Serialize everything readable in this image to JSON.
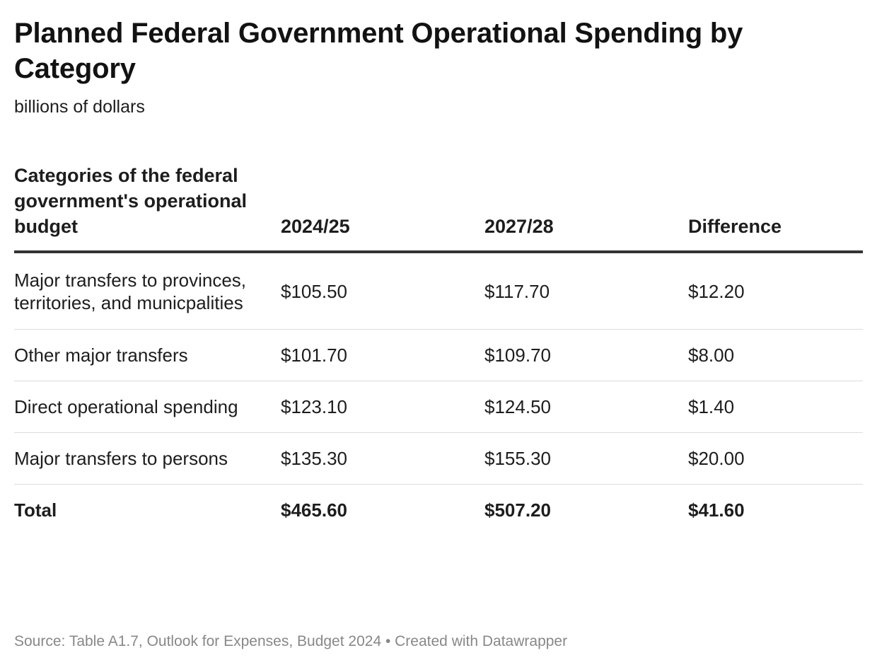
{
  "title": "Planned Federal Government Operational Spending by Category",
  "subtitle": "billions of dollars",
  "chart_data": {
    "type": "table",
    "columns": [
      "Categories of the federal government's operational budget",
      "2024/25",
      "2027/28",
      "Difference"
    ],
    "rows": [
      {
        "category": "Major transfers to provinces, territories, and municpalities",
        "y2024": "$105.50",
        "y2027": "$117.70",
        "difference": "$12.20"
      },
      {
        "category": "Other major transfers",
        "y2024": "$101.70",
        "y2027": "$109.70",
        "difference": "$8.00"
      },
      {
        "category": "Direct operational spending",
        "y2024": "$123.10",
        "y2027": "$124.50",
        "difference": "$1.40"
      },
      {
        "category": "Major transfers to persons",
        "y2024": "$135.30",
        "y2027": "$155.30",
        "difference": "$20.00"
      }
    ],
    "total": {
      "category": "Total",
      "y2024": "$465.60",
      "y2027": "$507.20",
      "difference": "$41.60"
    }
  },
  "footer": "Source: Table A1.7, Outlook for Expenses, Budget 2024 • Created with Datawrapper"
}
